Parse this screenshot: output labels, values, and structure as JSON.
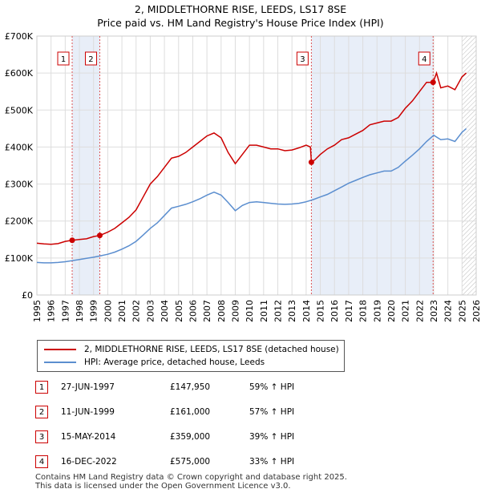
{
  "chart_data": {
    "type": "line",
    "title": "2, MIDDLETHORNE RISE, LEEDS, LS17 8SE",
    "subtitle": "Price paid vs. HM Land Registry's House Price Index (HPI)",
    "xlim": [
      1995,
      2026
    ],
    "ylim": [
      0,
      700000
    ],
    "yticks": [
      {
        "value": 0,
        "label": "£0"
      },
      {
        "value": 100000,
        "label": "£100K"
      },
      {
        "value": 200000,
        "label": "£200K"
      },
      {
        "value": 300000,
        "label": "£300K"
      },
      {
        "value": 400000,
        "label": "£400K"
      },
      {
        "value": 500000,
        "label": "£500K"
      },
      {
        "value": 600000,
        "label": "£600K"
      },
      {
        "value": 700000,
        "label": "£700K"
      }
    ],
    "xticks": [
      "1995",
      "1996",
      "1997",
      "1998",
      "1999",
      "2000",
      "2001",
      "2002",
      "2003",
      "2004",
      "2005",
      "2006",
      "2007",
      "2008",
      "2009",
      "2010",
      "2011",
      "2012",
      "2013",
      "2014",
      "2015",
      "2016",
      "2017",
      "2018",
      "2019",
      "2020",
      "2021",
      "2022",
      "2023",
      "2024",
      "2025",
      "2026"
    ],
    "series": [
      {
        "name": "2, MIDDLETHORNE RISE, LEEDS, LS17 8SE (detached house)",
        "color": "#cc0000",
        "points": [
          [
            1995.0,
            140000
          ],
          [
            1995.5,
            138000
          ],
          [
            1996.0,
            137000
          ],
          [
            1996.5,
            139000
          ],
          [
            1997.0,
            145000
          ],
          [
            1997.49,
            147950
          ],
          [
            1998.0,
            150000
          ],
          [
            1998.5,
            152000
          ],
          [
            1999.0,
            158000
          ],
          [
            1999.44,
            161000
          ],
          [
            2000.0,
            170000
          ],
          [
            2000.5,
            180000
          ],
          [
            2001.0,
            195000
          ],
          [
            2001.5,
            210000
          ],
          [
            2002.0,
            230000
          ],
          [
            2002.5,
            265000
          ],
          [
            2003.0,
            300000
          ],
          [
            2003.5,
            320000
          ],
          [
            2004.0,
            345000
          ],
          [
            2004.5,
            370000
          ],
          [
            2005.0,
            375000
          ],
          [
            2005.5,
            385000
          ],
          [
            2006.0,
            400000
          ],
          [
            2006.5,
            415000
          ],
          [
            2007.0,
            430000
          ],
          [
            2007.5,
            438000
          ],
          [
            2008.0,
            425000
          ],
          [
            2008.5,
            385000
          ],
          [
            2009.0,
            355000
          ],
          [
            2009.5,
            380000
          ],
          [
            2010.0,
            405000
          ],
          [
            2010.5,
            405000
          ],
          [
            2011.0,
            400000
          ],
          [
            2011.5,
            395000
          ],
          [
            2012.0,
            395000
          ],
          [
            2012.5,
            390000
          ],
          [
            2013.0,
            392000
          ],
          [
            2013.5,
            398000
          ],
          [
            2014.0,
            405000
          ],
          [
            2014.3,
            400000
          ],
          [
            2014.37,
            359000
          ],
          [
            2014.6,
            365000
          ],
          [
            2015.0,
            380000
          ],
          [
            2015.5,
            395000
          ],
          [
            2016.0,
            405000
          ],
          [
            2016.5,
            420000
          ],
          [
            2017.0,
            425000
          ],
          [
            2017.5,
            435000
          ],
          [
            2018.0,
            445000
          ],
          [
            2018.5,
            460000
          ],
          [
            2019.0,
            465000
          ],
          [
            2019.5,
            470000
          ],
          [
            2020.0,
            470000
          ],
          [
            2020.5,
            480000
          ],
          [
            2021.0,
            505000
          ],
          [
            2021.5,
            525000
          ],
          [
            2022.0,
            550000
          ],
          [
            2022.5,
            575000
          ],
          [
            2022.96,
            575000
          ],
          [
            2023.2,
            600000
          ],
          [
            2023.5,
            560000
          ],
          [
            2024.0,
            565000
          ],
          [
            2024.5,
            555000
          ],
          [
            2025.0,
            590000
          ],
          [
            2025.3,
            600000
          ]
        ]
      },
      {
        "name": "HPI: Average price, detached house, Leeds",
        "color": "#5b8ecf",
        "points": [
          [
            1995.0,
            88000
          ],
          [
            1995.5,
            87000
          ],
          [
            1996.0,
            87000
          ],
          [
            1996.5,
            88000
          ],
          [
            1997.0,
            90000
          ],
          [
            1997.5,
            93000
          ],
          [
            1998.0,
            96000
          ],
          [
            1998.5,
            99000
          ],
          [
            1999.0,
            102000
          ],
          [
            1999.5,
            106000
          ],
          [
            2000.0,
            110000
          ],
          [
            2000.5,
            116000
          ],
          [
            2001.0,
            124000
          ],
          [
            2001.5,
            133000
          ],
          [
            2002.0,
            145000
          ],
          [
            2002.5,
            162000
          ],
          [
            2003.0,
            180000
          ],
          [
            2003.5,
            195000
          ],
          [
            2004.0,
            215000
          ],
          [
            2004.5,
            235000
          ],
          [
            2005.0,
            240000
          ],
          [
            2005.5,
            245000
          ],
          [
            2006.0,
            252000
          ],
          [
            2006.5,
            260000
          ],
          [
            2007.0,
            270000
          ],
          [
            2007.5,
            278000
          ],
          [
            2008.0,
            270000
          ],
          [
            2008.5,
            250000
          ],
          [
            2009.0,
            228000
          ],
          [
            2009.5,
            242000
          ],
          [
            2010.0,
            250000
          ],
          [
            2010.5,
            252000
          ],
          [
            2011.0,
            250000
          ],
          [
            2011.5,
            248000
          ],
          [
            2012.0,
            246000
          ],
          [
            2012.5,
            245000
          ],
          [
            2013.0,
            246000
          ],
          [
            2013.5,
            248000
          ],
          [
            2014.0,
            252000
          ],
          [
            2014.5,
            258000
          ],
          [
            2015.0,
            265000
          ],
          [
            2015.5,
            272000
          ],
          [
            2016.0,
            282000
          ],
          [
            2016.5,
            292000
          ],
          [
            2017.0,
            302000
          ],
          [
            2017.5,
            310000
          ],
          [
            2018.0,
            318000
          ],
          [
            2018.5,
            325000
          ],
          [
            2019.0,
            330000
          ],
          [
            2019.5,
            335000
          ],
          [
            2020.0,
            335000
          ],
          [
            2020.5,
            345000
          ],
          [
            2021.0,
            362000
          ],
          [
            2021.5,
            378000
          ],
          [
            2022.0,
            395000
          ],
          [
            2022.5,
            415000
          ],
          [
            2023.0,
            432000
          ],
          [
            2023.5,
            420000
          ],
          [
            2024.0,
            422000
          ],
          [
            2024.5,
            415000
          ],
          [
            2025.0,
            440000
          ],
          [
            2025.3,
            450000
          ]
        ]
      }
    ],
    "sales": [
      {
        "n": "1",
        "x": 1997.49,
        "value": 147950
      },
      {
        "n": "2",
        "x": 1999.44,
        "value": 161000
      },
      {
        "n": "3",
        "x": 2014.37,
        "value": 359000
      },
      {
        "n": "4",
        "x": 2022.96,
        "value": 575000
      }
    ],
    "shaded_ranges": [
      [
        1997.49,
        1999.44
      ],
      [
        2014.37,
        2022.96
      ]
    ],
    "hatched_from": 2025.0
  },
  "legend": {
    "property_label": "2, MIDDLETHORNE RISE, LEEDS, LS17 8SE (detached house)",
    "hpi_label": "HPI: Average price, detached house, Leeds"
  },
  "sales_table": [
    {
      "n": "1",
      "date": "27-JUN-1997",
      "price": "£147,950",
      "hpi": "59% ↑ HPI"
    },
    {
      "n": "2",
      "date": "11-JUN-1999",
      "price": "£161,000",
      "hpi": "57% ↑ HPI"
    },
    {
      "n": "3",
      "date": "15-MAY-2014",
      "price": "£359,000",
      "hpi": "39% ↑ HPI"
    },
    {
      "n": "4",
      "date": "16-DEC-2022",
      "price": "£575,000",
      "hpi": "33% ↑ HPI"
    }
  ],
  "footer": {
    "line1": "Contains HM Land Registry data © Crown copyright and database right 2025.",
    "line2": "This data is licensed under the Open Government Licence v3.0."
  },
  "colors": {
    "property": "#cc0000",
    "hpi": "#5b8ecf",
    "shade": "#e8eef8",
    "grid": "#dddddd"
  }
}
